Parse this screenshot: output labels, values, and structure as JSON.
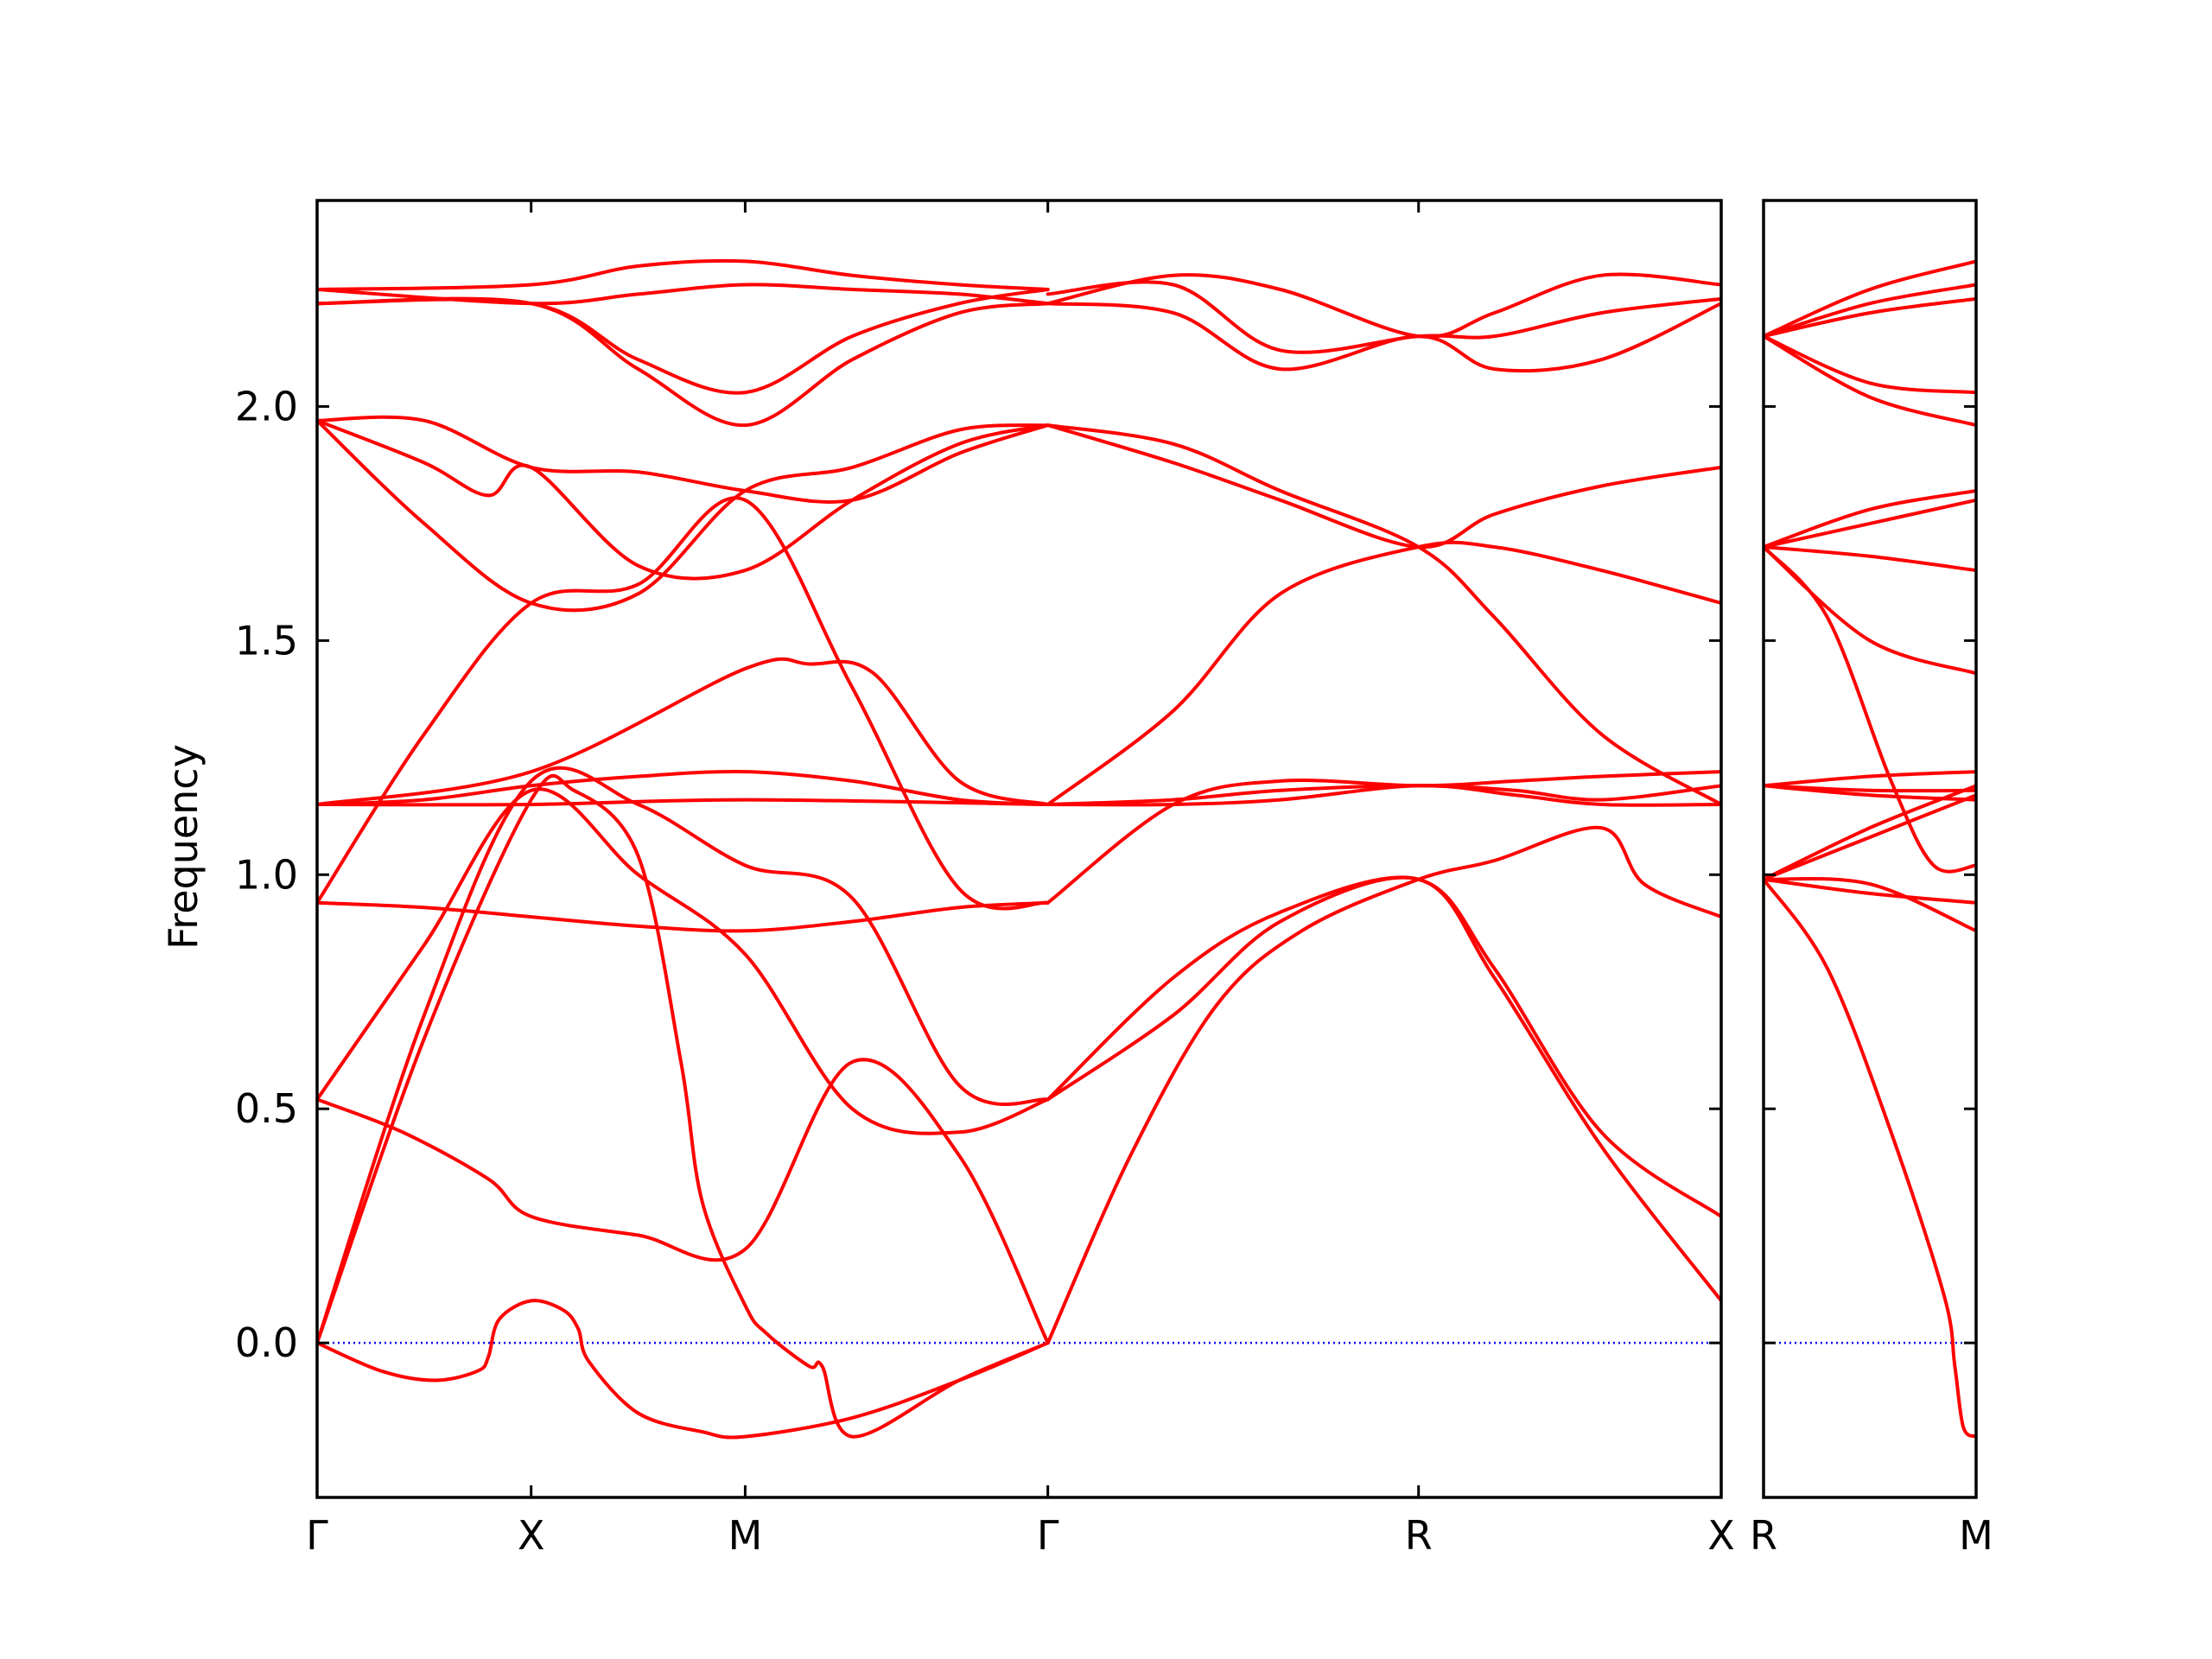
{
  "chart_data": {
    "type": "line",
    "title": "",
    "xlabel": "",
    "ylabel": "Frequency",
    "ylim": [
      -0.33,
      2.44
    ],
    "grid": false,
    "legend": "none",
    "y_ticks": [
      "0.0",
      "0.5",
      "1.0",
      "1.5",
      "2.0"
    ],
    "y_tick_values": [
      0.0,
      0.5,
      1.0,
      1.5,
      2.0
    ],
    "band_color": "#ff0000",
    "zero_line_color": "#0000ff",
    "panels": [
      {
        "name": "panel-main",
        "ticks": [
          "Γ",
          "X",
          "M",
          "Γ",
          "R",
          "X"
        ],
        "tick_x": [
          0,
          1,
          2,
          3.414,
          5.146,
          6.56
        ],
        "xlim": [
          0,
          6.56
        ],
        "bands": [
          {
            "x": [
              0,
              0.3,
              0.55,
              0.75,
              0.8,
              0.85,
              1,
              1.15,
              1.22,
              1.27,
              1.5,
              1.8,
              2,
              2.5,
              3,
              3.414
            ],
            "y": [
              0,
              -0.06,
              -0.08,
              -0.06,
              -0.03,
              0.05,
              0.09,
              0.07,
              0.03,
              -0.04,
              -0.15,
              -0.19,
              -0.2,
              -0.16,
              -0.08,
              0
            ]
          },
          {
            "x": [
              0,
              0.5,
              1,
              1.2,
              1.5,
              1.7,
              1.8,
              2,
              2.1,
              2.3,
              2.36,
              2.5,
              3,
              3.414
            ],
            "y": [
              0,
              0.65,
              1.16,
              1.18,
              1.04,
              0.6,
              0.3,
              0.08,
              0.02,
              -0.05,
              -0.05,
              -0.2,
              -0.08,
              0
            ]
          },
          {
            "x": [
              0,
              0.4,
              0.8,
              1,
              1.5,
              2,
              2.5,
              3,
              3.414
            ],
            "y": [
              0.52,
              0.45,
              0.35,
              0.27,
              0.23,
              0.2,
              0.6,
              0.4,
              0
            ]
          },
          {
            "x": [
              0,
              0.5,
              1,
              1.5,
              2,
              2.5,
              3,
              3.414
            ],
            "y": [
              0.52,
              0.85,
              1.18,
              1.0,
              0.83,
              0.5,
              0.45,
              0.52
            ]
          },
          {
            "x": [
              0,
              0.5,
              1,
              1.5,
              2,
              2.5,
              3,
              3.414
            ],
            "y": [
              0,
              0.7,
              1.2,
              1.15,
              1.02,
              0.95,
              0.55,
              0.52
            ]
          },
          {
            "x": [
              0,
              0.5,
              1,
              1.5,
              2,
              2.5,
              3,
              3.414
            ],
            "y": [
              0.94,
              0.93,
              0.91,
              0.89,
              0.88,
              0.9,
              0.93,
              0.94
            ]
          },
          {
            "x": [
              0,
              0.5,
              1,
              1.5,
              2,
              2.5,
              3,
              3.414
            ],
            "y": [
              0.94,
              1.3,
              1.58,
              1.62,
              1.8,
              1.4,
              0.97,
              0.94
            ]
          },
          {
            "x": [
              0,
              0.5,
              1,
              1.5,
              2,
              2.5,
              3,
              3.414
            ],
            "y": [
              1.15,
              1.16,
              1.19,
              1.21,
              1.22,
              1.2,
              1.16,
              1.15
            ]
          },
          {
            "x": [
              0,
              1,
              2,
              3.414
            ],
            "y": [
              1.15,
              1.15,
              1.16,
              1.15
            ]
          },
          {
            "x": [
              0,
              1,
              2,
              2.3,
              2.6,
              3,
              3.414
            ],
            "y": [
              1.15,
              1.22,
              1.44,
              1.45,
              1.43,
              1.2,
              1.15
            ]
          },
          {
            "x": [
              0,
              0.5,
              1,
              1.5,
              2,
              2.5,
              3,
              3.414
            ],
            "y": [
              1.97,
              1.97,
              1.87,
              1.86,
              1.82,
              1.8,
              1.9,
              1.96
            ]
          },
          {
            "x": [
              0,
              0.5,
              0.8,
              1,
              1.5,
              2,
              2.5,
              3,
              3.414
            ],
            "y": [
              1.97,
              1.88,
              1.81,
              1.87,
              1.66,
              1.65,
              1.8,
              1.92,
              1.96
            ]
          },
          {
            "x": [
              0,
              0.5,
              1,
              1.5,
              2,
              2.5,
              3,
              3.414
            ],
            "y": [
              1.97,
              1.75,
              1.58,
              1.6,
              1.82,
              1.87,
              1.95,
              1.96
            ]
          },
          {
            "x": [
              0,
              1,
              1.5,
              2,
              2.5,
              3,
              3.414
            ],
            "y": [
              2.25,
              2.26,
              2.3,
              2.31,
              2.28,
              2.26,
              2.25
            ]
          },
          {
            "x": [
              0,
              1,
              1.5,
              2,
              2.5,
              3,
              3.414
            ],
            "y": [
              2.25,
              2.22,
              2.24,
              2.26,
              2.25,
              2.24,
              2.22
            ]
          },
          {
            "x": [
              0,
              1,
              1.5,
              2,
              2.5,
              3,
              3.414
            ],
            "y": [
              2.22,
              2.22,
              2.1,
              2.03,
              2.15,
              2.22,
              2.25
            ]
          },
          {
            "x": [
              0,
              1,
              1.5,
              2,
              2.5,
              3,
              3.414
            ],
            "y": [
              2.22,
              2.22,
              2.08,
              1.96,
              2.1,
              2.2,
              2.22
            ]
          },
          {
            "x": [
              3.414,
              4,
              4.5,
              5.146,
              5.5,
              6,
              6.56
            ],
            "y": [
              0.52,
              0.78,
              0.92,
              0.99,
              0.8,
              0.45,
              0.27
            ]
          },
          {
            "x": [
              3.414,
              4,
              4.5,
              5.146,
              5.5,
              6,
              6.56
            ],
            "y": [
              0.52,
              0.7,
              0.9,
              0.99,
              0.78,
              0.42,
              0.09
            ]
          },
          {
            "x": [
              3.414,
              3.8,
              4.2,
              4.6,
              5.146,
              5.5,
              6,
              6.2,
              6.56
            ],
            "y": [
              0,
              0.4,
              0.72,
              0.88,
              0.99,
              1.03,
              1.1,
              0.98,
              0.91
            ]
          },
          {
            "x": [
              3.414,
              4,
              4.5,
              5.146,
              5.6,
              6,
              6.56
            ],
            "y": [
              0.94,
              1.15,
              1.2,
              1.19,
              1.2,
              1.21,
              1.22
            ]
          },
          {
            "x": [
              3.414,
              4,
              4.5,
              5.146,
              5.6,
              6,
              6.56
            ],
            "y": [
              1.15,
              1.16,
              1.18,
              1.19,
              1.18,
              1.16,
              1.19
            ]
          },
          {
            "x": [
              3.414,
              4,
              4.5,
              5.146,
              5.6,
              6,
              6.56
            ],
            "y": [
              1.15,
              1.15,
              1.16,
              1.19,
              1.17,
              1.15,
              1.15
            ]
          },
          {
            "x": [
              3.414,
              4,
              4.5,
              5.146,
              5.5,
              6,
              6.56
            ],
            "y": [
              1.15,
              1.35,
              1.6,
              1.7,
              1.7,
              1.65,
              1.58
            ]
          },
          {
            "x": [
              3.414,
              4,
              4.5,
              5.146,
              5.5,
              6,
              6.56
            ],
            "y": [
              1.96,
              1.88,
              1.8,
              1.7,
              1.77,
              1.83,
              1.87
            ]
          },
          {
            "x": [
              3.414,
              4,
              4.5,
              5.146,
              5.5,
              6,
              6.56
            ],
            "y": [
              1.96,
              1.92,
              1.82,
              1.7,
              1.55,
              1.3,
              1.15
            ]
          },
          {
            "x": [
              3.414,
              4,
              4.5,
              5.146,
              5.5,
              6,
              6.56
            ],
            "y": [
              2.22,
              2.28,
              2.25,
              2.15,
              2.2,
              2.28,
              2.26
            ]
          },
          {
            "x": [
              3.414,
              4,
              4.5,
              5.146,
              5.5,
              6,
              6.56
            ],
            "y": [
              2.24,
              2.26,
              2.12,
              2.15,
              2.15,
              2.2,
              2.23
            ]
          },
          {
            "x": [
              3.414,
              4,
              4.5,
              5.146,
              5.5,
              6,
              6.56
            ],
            "y": [
              2.22,
              2.2,
              2.08,
              2.15,
              2.08,
              2.1,
              2.22
            ]
          }
        ]
      },
      {
        "name": "panel-side",
        "ticks": [
          "R",
          "M"
        ],
        "tick_x": [
          0,
          1
        ],
        "xlim": [
          0,
          1
        ],
        "bands": [
          {
            "x": [
              0,
              0.3,
              0.6,
              0.85,
              0.9,
              0.94,
              1
            ],
            "y": [
              0.99,
              0.8,
              0.45,
              0.1,
              -0.05,
              -0.18,
              -0.2
            ]
          },
          {
            "x": [
              0,
              0.5,
              1
            ],
            "y": [
              0.99,
              0.98,
              0.88
            ]
          },
          {
            "x": [
              0,
              0.5,
              1
            ],
            "y": [
              0.99,
              0.96,
              0.94
            ]
          },
          {
            "x": [
              0,
              0.5,
              1
            ],
            "y": [
              0.99,
              1.08,
              1.17
            ]
          },
          {
            "x": [
              0,
              0.5,
              1
            ],
            "y": [
              0.99,
              1.1,
              1.19
            ]
          },
          {
            "x": [
              0,
              0.5,
              1
            ],
            "y": [
              1.19,
              1.18,
              1.18
            ]
          },
          {
            "x": [
              0,
              0.5,
              1
            ],
            "y": [
              1.19,
              1.21,
              1.22
            ]
          },
          {
            "x": [
              0,
              0.5,
              1
            ],
            "y": [
              1.19,
              1.17,
              1.16
            ]
          },
          {
            "x": [
              0,
              0.3,
              0.6,
              0.8,
              1
            ],
            "y": [
              1.7,
              1.55,
              1.2,
              1.02,
              1.02
            ]
          },
          {
            "x": [
              0,
              0.5,
              1
            ],
            "y": [
              1.7,
              1.5,
              1.43
            ]
          },
          {
            "x": [
              0,
              0.5,
              1
            ],
            "y": [
              1.7,
              1.68,
              1.65
            ]
          },
          {
            "x": [
              0,
              0.5,
              1
            ],
            "y": [
              1.7,
              1.75,
              1.8
            ]
          },
          {
            "x": [
              0,
              0.5,
              1
            ],
            "y": [
              1.7,
              1.78,
              1.82
            ]
          },
          {
            "x": [
              0,
              0.5,
              1
            ],
            "y": [
              2.15,
              2.02,
              1.96
            ]
          },
          {
            "x": [
              0,
              0.5,
              1
            ],
            "y": [
              2.15,
              2.05,
              2.03
            ]
          },
          {
            "x": [
              0,
              0.5,
              1
            ],
            "y": [
              2.15,
              2.2,
              2.23
            ]
          },
          {
            "x": [
              0,
              0.5,
              1
            ],
            "y": [
              2.15,
              2.22,
              2.26
            ]
          },
          {
            "x": [
              0,
              0.5,
              1
            ],
            "y": [
              2.15,
              2.25,
              2.31
            ]
          }
        ]
      }
    ]
  }
}
